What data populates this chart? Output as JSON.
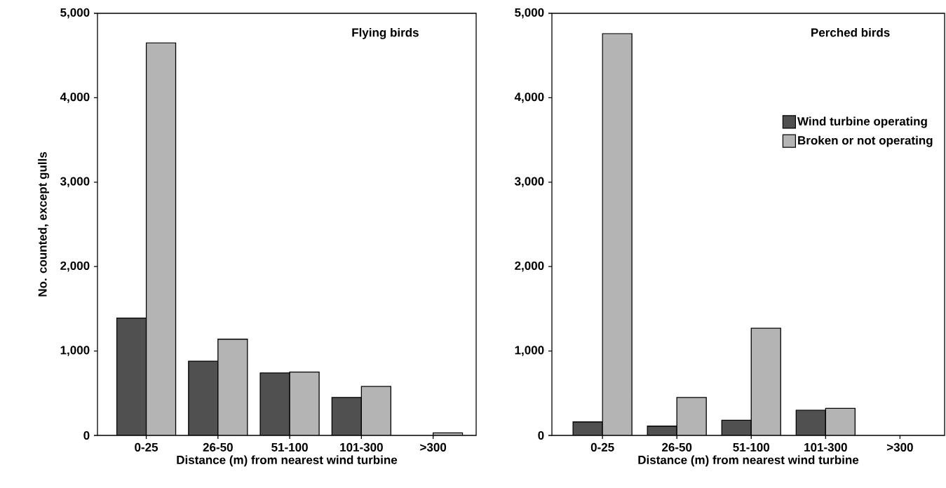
{
  "chart_data": [
    {
      "type": "bar",
      "title": "Flying birds",
      "xlabel": "Distance (m) from nearest wind turbine",
      "ylabel": "No. counted, except gulls",
      "categories": [
        "0-25",
        "26-50",
        "51-100",
        "101-300",
        ">300"
      ],
      "series": [
        {
          "color": "#505050",
          "values": [
            1390,
            880,
            740,
            450,
            0
          ]
        },
        {
          "color": "#b4b4b4",
          "values": [
            4650,
            1140,
            750,
            580,
            30
          ]
        }
      ],
      "ylim": [
        0,
        5000
      ],
      "yticks": [
        0,
        {
          "value": 1000,
          "label": "1,000"
        },
        {
          "value": 2000,
          "label": "2,000"
        },
        {
          "value": 3000,
          "label": "3,000"
        },
        {
          "value": 4000,
          "label": "4,000"
        },
        {
          "value": 5000,
          "label": "5,000"
        }
      ],
      "legend": false
    },
    {
      "type": "bar",
      "title": "Perched birds",
      "xlabel": "Distance (m) from nearest wind turbine",
      "categories": [
        "0-25",
        "26-50",
        "51-100",
        "101-300",
        ">300"
      ],
      "series": [
        {
          "name": "Wind turbine operating",
          "color": "#505050",
          "values": [
            160,
            110,
            180,
            300,
            null
          ]
        },
        {
          "name": "Broken or not operating",
          "color": "#b4b4b4",
          "values": [
            4760,
            450,
            1270,
            320,
            null
          ]
        }
      ],
      "ylim": [
        0,
        5000
      ],
      "yticks": [
        0,
        {
          "value": 1000,
          "label": "1,000"
        },
        {
          "value": 2000,
          "label": "2,000"
        },
        {
          "value": 3000,
          "label": "3,000"
        },
        {
          "value": 4000,
          "label": "4,000"
        },
        {
          "value": 5000,
          "label": "5,000"
        }
      ],
      "legend": "right"
    }
  ]
}
